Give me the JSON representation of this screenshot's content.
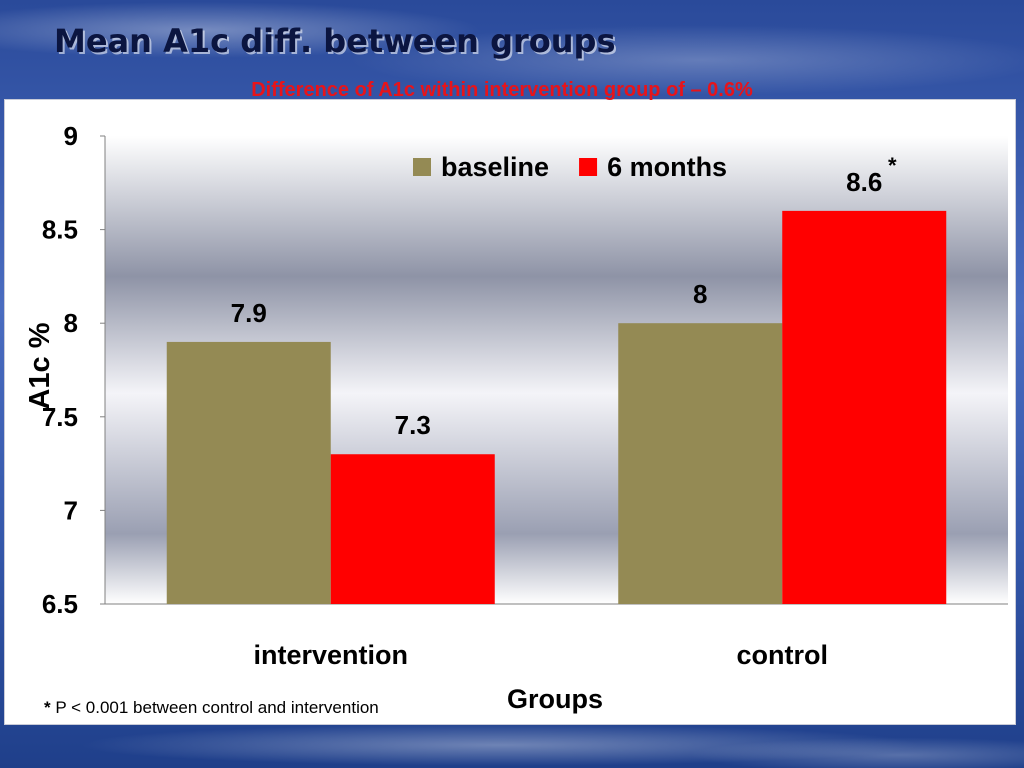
{
  "slide": {
    "title": "Mean A1c diff. between groups",
    "subtitle": "Difference of A1c within intervention group of – 0.6%",
    "footnote_star": "*",
    "footnote_text": "P < 0.001 between control and intervention"
  },
  "chart_data": {
    "type": "bar",
    "categories": [
      "intervention",
      "control"
    ],
    "series": [
      {
        "name": "baseline",
        "values": [
          7.9,
          8
        ],
        "labels": [
          "7.9",
          "8"
        ],
        "color": "#948a54"
      },
      {
        "name": "6 months",
        "values": [
          7.3,
          8.6
        ],
        "labels": [
          "7.3",
          "8.6"
        ],
        "color": "#ff0000"
      }
    ],
    "significance_marker": {
      "category": "control",
      "series": "6 months",
      "text": "*"
    },
    "xlabel": "Groups",
    "ylabel": "A1c %",
    "ylim": [
      6.5,
      9
    ],
    "yticks": [
      9,
      8.5,
      8,
      7.5,
      7,
      6.5
    ],
    "ytick_labels": [
      "9",
      "8.5",
      "8",
      "7.5",
      "7",
      "6.5"
    ],
    "legend_position": "top-right",
    "grid": false,
    "plot_background": "gradient"
  }
}
